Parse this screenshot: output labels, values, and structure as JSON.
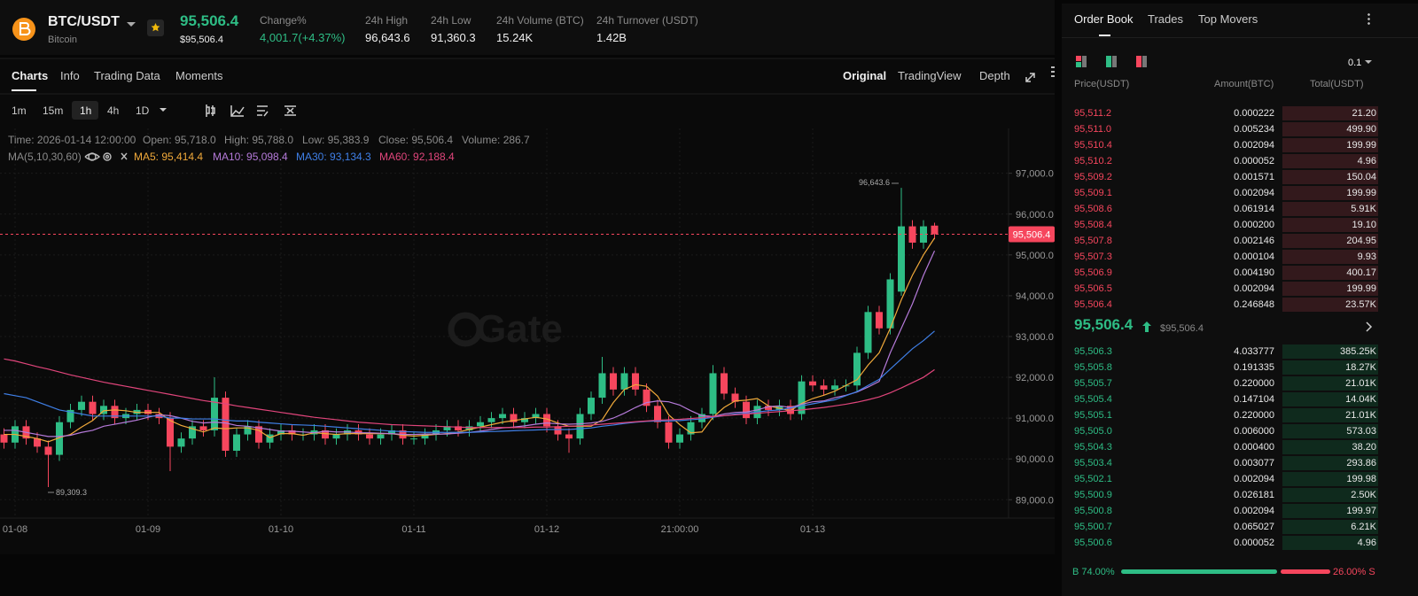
{
  "header": {
    "pair": "BTC/USDT",
    "name": "Bitcoin",
    "price": "95,506.4",
    "price_usd": "$95,506.4",
    "stats": [
      {
        "label": "Change%",
        "value": "4,001.7(+4.37%)"
      },
      {
        "label": "24h High",
        "value": "96,643.6"
      },
      {
        "label": "24h Low",
        "value": "91,360.3"
      },
      {
        "label": "24h Volume (BTC)",
        "value": "15.24K"
      },
      {
        "label": "24h Turnover (USDT)",
        "value": "1.42B"
      }
    ]
  },
  "tabs": {
    "left": [
      "Charts",
      "Info",
      "Trading Data",
      "Moments"
    ],
    "right": [
      "Original",
      "TradingView",
      "Depth"
    ],
    "intervals": [
      "1m",
      "15m",
      "1h",
      "4h",
      "1D"
    ]
  },
  "info": {
    "ohlc": [
      "Time: 2026-01-14 12:00:00",
      "Open: 95,718.0",
      "High: 95,788.0",
      "Low: 95,383.9",
      "Close: 95,506.4",
      "Volume: 286.7"
    ],
    "ma_title": "MA(5,10,30,60)"
  },
  "chart_data": {
    "type": "candlestick",
    "watermark": "Gate",
    "categories": [
      null,
      "01-08",
      null,
      null,
      null,
      null,
      null,
      null,
      null,
      null,
      null,
      null,
      null,
      "01-09",
      null,
      null,
      null,
      null,
      null,
      null,
      null,
      null,
      null,
      null,
      null,
      "01-10",
      null,
      null,
      null,
      null,
      null,
      null,
      null,
      null,
      null,
      null,
      null,
      "01-11",
      null,
      null,
      null,
      null,
      null,
      null,
      null,
      null,
      null,
      null,
      null,
      "01-12",
      null,
      null,
      null,
      null,
      null,
      null,
      null,
      null,
      null,
      null,
      null,
      "21:00:00",
      null,
      null,
      null,
      null,
      null,
      null,
      null,
      null,
      null,
      null,
      null,
      "01-13",
      null,
      null,
      null,
      null,
      null,
      null,
      null,
      null,
      null,
      null,
      null
    ],
    "open": [
      90600,
      90400,
      90800,
      90500,
      90300,
      90100,
      90900,
      91200,
      91400,
      91100,
      91300,
      91000,
      91100,
      91200,
      91100,
      91000,
      90300,
      90500,
      90800,
      90700,
      91500,
      90200,
      90600,
      90800,
      90400,
      90600,
      90700,
      90600,
      90600,
      90700,
      90500,
      90600,
      90700,
      90600,
      90500,
      90600,
      90700,
      90500,
      90500,
      90600,
      90700,
      90800,
      90700,
      90800,
      90900,
      91000,
      91100,
      90900,
      91000,
      91100,
      90800,
      90600,
      90500,
      91100,
      91500,
      92100,
      91700,
      92100,
      91700,
      91300,
      90900,
      90400,
      90600,
      90900,
      91100,
      92100,
      91600,
      91400,
      91000,
      91300,
      91200,
      91300,
      91100,
      91900,
      91800,
      91700,
      91800,
      91800,
      92600,
      93600,
      93200,
      94100,
      95700,
      95300,
      95718
    ],
    "high": [
      90750,
      90950,
      90950,
      90650,
      90450,
      91050,
      91350,
      91550,
      91550,
      91450,
      91450,
      91250,
      91350,
      91350,
      91250,
      91150,
      90650,
      90950,
      90950,
      92000,
      91650,
      90750,
      90950,
      90950,
      90750,
      90850,
      90850,
      90750,
      90850,
      90850,
      90750,
      90850,
      90850,
      90750,
      90750,
      90850,
      90850,
      90650,
      90750,
      90850,
      90950,
      90950,
      90950,
      91050,
      91150,
      91250,
      91250,
      91150,
      91250,
      91250,
      90950,
      90750,
      91250,
      91650,
      92500,
      92250,
      92250,
      92250,
      91850,
      91450,
      91050,
      90750,
      91050,
      91250,
      92300,
      92250,
      91750,
      91550,
      91450,
      91450,
      91450,
      91450,
      92050,
      92050,
      91950,
      91950,
      91950,
      92750,
      93750,
      93750,
      94550,
      96643.6,
      95850,
      95850,
      95788
    ],
    "low": [
      90250,
      90250,
      90350,
      90150,
      89309.3,
      89950,
      90750,
      91050,
      90950,
      90950,
      90850,
      90850,
      90950,
      90950,
      90850,
      89700,
      90150,
      90350,
      90550,
      90550,
      90050,
      90050,
      90450,
      90250,
      90250,
      90450,
      90450,
      90450,
      90450,
      90350,
      90350,
      90450,
      90450,
      90350,
      90350,
      90450,
      90350,
      90350,
      90350,
      90450,
      90550,
      90550,
      90550,
      90650,
      90750,
      90850,
      90750,
      90750,
      90850,
      90650,
      90450,
      90150,
      90350,
      90950,
      91350,
      91550,
      91550,
      91550,
      91150,
      90750,
      90250,
      90250,
      90450,
      90750,
      90950,
      91450,
      91250,
      90850,
      90850,
      91050,
      91050,
      90950,
      90950,
      91650,
      91550,
      91550,
      91650,
      91650,
      92450,
      93050,
      93050,
      94000,
      95150,
      95150,
      95383.9
    ],
    "close": [
      90400,
      90800,
      90500,
      90300,
      90100,
      90900,
      91200,
      91400,
      91100,
      91300,
      91000,
      91100,
      91200,
      91100,
      91000,
      90300,
      90500,
      90800,
      90700,
      91500,
      90200,
      90600,
      90800,
      90400,
      90600,
      90700,
      90600,
      90600,
      90700,
      90500,
      90600,
      90700,
      90600,
      90500,
      90600,
      90700,
      90500,
      90500,
      90600,
      90700,
      90800,
      90700,
      90800,
      90900,
      91000,
      91100,
      90900,
      91000,
      91100,
      90800,
      90600,
      90500,
      91100,
      91500,
      92100,
      91700,
      92100,
      91700,
      91300,
      90900,
      90400,
      90600,
      90900,
      91100,
      92100,
      91600,
      91400,
      91000,
      91300,
      91200,
      91300,
      91100,
      91900,
      91800,
      91700,
      91800,
      91800,
      92600,
      93600,
      93200,
      94400,
      95700,
      95300,
      95700,
      95506.4
    ],
    "up_color": "#2ebd85",
    "down_color": "#f6465d",
    "series": [
      {
        "name": "MA5: 95,414.4",
        "color": "#f0a93a",
        "values": [
          90600,
          90600,
          90550,
          90500,
          90420,
          90520,
          90600,
          90780,
          90940,
          91180,
          91200,
          91180,
          91140,
          91140,
          91140,
          90940,
          90820,
          90740,
          90660,
          90760,
          90740,
          90760,
          90760,
          90700,
          90520,
          90620,
          90620,
          90580,
          90640,
          90620,
          90600,
          90620,
          90620,
          90620,
          90620,
          90620,
          90580,
          90560,
          90580,
          90600,
          90620,
          90660,
          90720,
          90780,
          90840,
          90900,
          90940,
          90980,
          91020,
          90980,
          90880,
          90800,
          90800,
          90800,
          90960,
          91380,
          91700,
          91820,
          91780,
          91540,
          91080,
          90840,
          90640,
          90660,
          91020,
          91260,
          91420,
          91440,
          91480,
          91300,
          91240,
          91180,
          91360,
          91480,
          91560,
          91660,
          91800,
          91940,
          92300,
          92600,
          93200,
          93900,
          94500,
          95000,
          95414.4
        ]
      },
      {
        "name": "MA10: 95,098.4",
        "color": "#b57ad9",
        "values": [
          90700,
          90700,
          90650,
          90600,
          90550,
          90550,
          90580,
          90650,
          90700,
          90800,
          90850,
          90900,
          90950,
          91020,
          91080,
          91060,
          91000,
          90920,
          90880,
          90900,
          90880,
          90820,
          90800,
          90760,
          90720,
          90680,
          90680,
          90660,
          90640,
          90680,
          90660,
          90660,
          90640,
          90640,
          90630,
          90620,
          90600,
          90600,
          90610,
          90610,
          90610,
          90630,
          90650,
          90680,
          90720,
          90760,
          90780,
          90810,
          90850,
          90880,
          90860,
          90850,
          90860,
          90880,
          90920,
          91000,
          91120,
          91260,
          91380,
          91420,
          91400,
          91320,
          91180,
          91060,
          91040,
          91100,
          91140,
          91150,
          91200,
          91280,
          91300,
          91260,
          91340,
          91400,
          91420,
          91500,
          91560,
          91640,
          91760,
          91900,
          92600,
          93200,
          93800,
          94500,
          95098.4
        ]
      },
      {
        "name": "MA30: 93,134.3",
        "color": "#3f7fe6",
        "values": [
          91600,
          91550,
          91500,
          91400,
          91300,
          91200,
          91150,
          91100,
          91050,
          91050,
          91050,
          91050,
          91050,
          91050,
          91050,
          91000,
          91000,
          90980,
          90980,
          90980,
          90950,
          90930,
          90930,
          90900,
          90880,
          90860,
          90840,
          90830,
          90820,
          90800,
          90780,
          90760,
          90740,
          90720,
          90700,
          90680,
          90670,
          90660,
          90650,
          90650,
          90650,
          90650,
          90650,
          90660,
          90670,
          90680,
          90690,
          90700,
          90710,
          90720,
          90720,
          90720,
          90740,
          90760,
          90800,
          90830,
          90870,
          90900,
          90920,
          90930,
          90930,
          90940,
          90960,
          90980,
          91020,
          91060,
          91100,
          91120,
          91150,
          91180,
          91200,
          91250,
          91300,
          91350,
          91400,
          91450,
          91550,
          91650,
          91800,
          91950,
          92200,
          92450,
          92700,
          92900,
          93134.3
        ]
      },
      {
        "name": "MA60: 92,188.4",
        "color": "#e0457b",
        "values": [
          92450,
          92400,
          92330,
          92260,
          92200,
          92130,
          92060,
          92000,
          91940,
          91880,
          91830,
          91780,
          91730,
          91680,
          91630,
          91580,
          91530,
          91480,
          91430,
          91390,
          91350,
          91300,
          91260,
          91220,
          91180,
          91140,
          91100,
          91060,
          91020,
          90990,
          90960,
          90930,
          90900,
          90880,
          90860,
          90840,
          90830,
          90820,
          90810,
          90800,
          90790,
          90780,
          90770,
          90770,
          90770,
          90770,
          90770,
          90770,
          90780,
          90780,
          90790,
          90800,
          90810,
          90830,
          90850,
          90870,
          90890,
          90910,
          90930,
          90950,
          90960,
          90970,
          90990,
          91010,
          91040,
          91060,
          91080,
          91100,
          91120,
          91140,
          91160,
          91180,
          91200,
          91230,
          91260,
          91300,
          91340,
          91390,
          91450,
          91520,
          91620,
          91740,
          91870,
          92000,
          92188.4
        ]
      }
    ],
    "ylim": [
      88550,
      98100
    ],
    "yticks": [
      {
        "value": 97000,
        "label": "97,000.0"
      },
      {
        "value": 96000,
        "label": "96,000.0"
      },
      {
        "value": 95000,
        "label": "95,000.0"
      },
      {
        "value": 94000,
        "label": "94,000.0"
      },
      {
        "value": 93000,
        "label": "93,000.0"
      },
      {
        "value": 92000,
        "label": "92,000.0"
      },
      {
        "value": 91000,
        "label": "91,000.0"
      },
      {
        "value": 90000,
        "label": "90,000.0"
      },
      {
        "value": 89000,
        "label": "89,000.0"
      }
    ],
    "last_price": {
      "value": 95506.4,
      "label": "95,506.4"
    },
    "high_label": "96,643.6",
    "low_label": "89,309.3",
    "grid": true
  },
  "order_book": {
    "tabs": [
      "Order Book",
      "Trades",
      "Top Movers"
    ],
    "precision": "0.1",
    "columns": [
      "Price(USDT)",
      "Amount(BTC)",
      "Total(USDT)"
    ],
    "asks": [
      [
        "95,511.2",
        "0.000222",
        "21.20"
      ],
      [
        "95,511.0",
        "0.005234",
        "499.90"
      ],
      [
        "95,510.4",
        "0.002094",
        "199.99"
      ],
      [
        "95,510.2",
        "0.000052",
        "4.96"
      ],
      [
        "95,509.2",
        "0.001571",
        "150.04"
      ],
      [
        "95,509.1",
        "0.002094",
        "199.99"
      ],
      [
        "95,508.6",
        "0.061914",
        "5.91K"
      ],
      [
        "95,508.4",
        "0.000200",
        "19.10"
      ],
      [
        "95,507.8",
        "0.002146",
        "204.95"
      ],
      [
        "95,507.3",
        "0.000104",
        "9.93"
      ],
      [
        "95,506.9",
        "0.004190",
        "400.17"
      ],
      [
        "95,506.5",
        "0.002094",
        "199.99"
      ],
      [
        "95,506.4",
        "0.246848",
        "23.57K"
      ]
    ],
    "mid_price": "95,506.4",
    "mid_usd": "$95,506.4",
    "bids": [
      [
        "95,506.3",
        "4.033777",
        "385.25K"
      ],
      [
        "95,505.8",
        "0.191335",
        "18.27K"
      ],
      [
        "95,505.7",
        "0.220000",
        "21.01K"
      ],
      [
        "95,505.4",
        "0.147104",
        "14.04K"
      ],
      [
        "95,505.1",
        "0.220000",
        "21.01K"
      ],
      [
        "95,505.0",
        "0.006000",
        "573.03"
      ],
      [
        "95,504.3",
        "0.000400",
        "38.20"
      ],
      [
        "95,503.4",
        "0.003077",
        "293.86"
      ],
      [
        "95,502.1",
        "0.002094",
        "199.98"
      ],
      [
        "95,500.9",
        "0.026181",
        "2.50K"
      ],
      [
        "95,500.8",
        "0.002094",
        "199.97"
      ],
      [
        "95,500.7",
        "0.065027",
        "6.21K"
      ],
      [
        "95,500.6",
        "0.000052",
        "4.96"
      ]
    ],
    "buy_ratio": "B 74.00%",
    "sell_ratio": "26.00% S"
  }
}
